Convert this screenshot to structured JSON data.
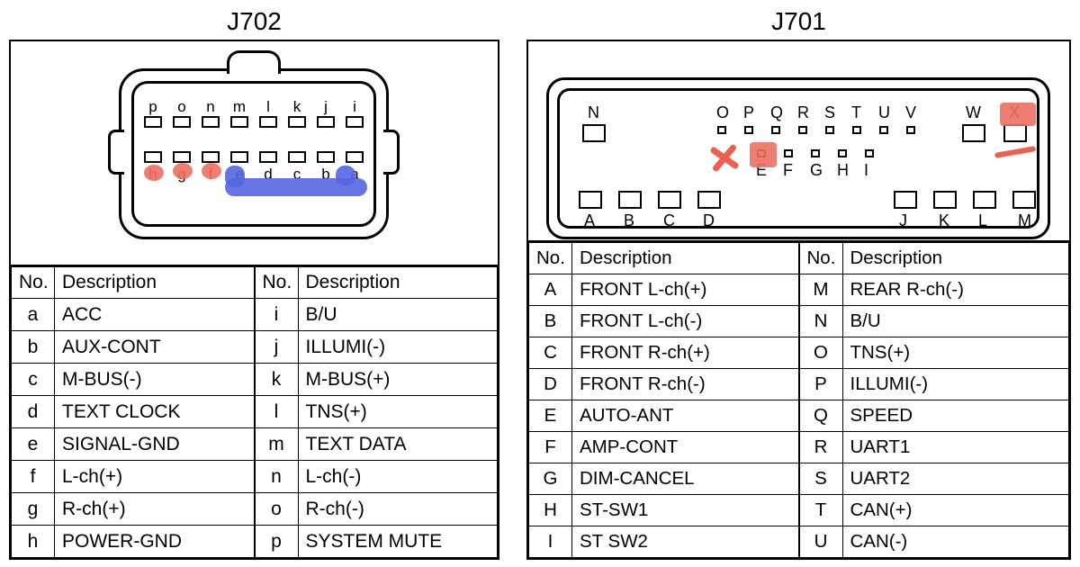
{
  "colors": {
    "line": "#000000",
    "bg": "#ffffff",
    "highlight_red": "#ec7063",
    "highlight_blue": "#5566e0"
  },
  "font": {
    "family": "Arial",
    "title_size": 28,
    "cell_size": 21
  },
  "j702": {
    "title": "J702",
    "headers": {
      "no": "No.",
      "desc": "Description"
    },
    "top_row_labels": [
      "p",
      "o",
      "n",
      "m",
      "l",
      "k",
      "j",
      "i"
    ],
    "bottom_row_labels": [
      "h",
      "g",
      "f",
      "e",
      "d",
      "c",
      "b",
      "a"
    ],
    "left_rows": [
      {
        "no": "a",
        "desc": "ACC"
      },
      {
        "no": "b",
        "desc": "AUX-CONT"
      },
      {
        "no": "c",
        "desc": "M-BUS(-)"
      },
      {
        "no": "d",
        "desc": "TEXT CLOCK"
      },
      {
        "no": "e",
        "desc": "SIGNAL-GND"
      },
      {
        "no": "f",
        "desc": "L-ch(+)"
      },
      {
        "no": "g",
        "desc": "R-ch(+)"
      },
      {
        "no": "h",
        "desc": "POWER-GND"
      }
    ],
    "right_rows": [
      {
        "no": "i",
        "desc": "B/U"
      },
      {
        "no": "j",
        "desc": "ILLUMI(-)"
      },
      {
        "no": "k",
        "desc": "M-BUS(+)"
      },
      {
        "no": "l",
        "desc": "TNS(+)"
      },
      {
        "no": "m",
        "desc": "TEXT DATA"
      },
      {
        "no": "n",
        "desc": "L-ch(-)"
      },
      {
        "no": "o",
        "desc": "R-ch(-)"
      },
      {
        "no": "p",
        "desc": "SYSTEM MUTE"
      }
    ],
    "red_dots_on": [
      "h",
      "g",
      "f"
    ],
    "blue_smear_on": [
      "e",
      "d",
      "c",
      "b",
      "a"
    ]
  },
  "j701": {
    "title": "J701",
    "headers": {
      "no": "No.",
      "desc": "Description"
    },
    "labels_top_mid": [
      "O",
      "P",
      "Q",
      "R",
      "S",
      "T",
      "U",
      "V"
    ],
    "labels_mid": [
      "E",
      "F",
      "G",
      "H",
      "I"
    ],
    "labels_bottom": [
      "A",
      "B",
      "C",
      "D",
      "J",
      "K",
      "L",
      "M"
    ],
    "label_N": "N",
    "label_W": "W",
    "label_X": "X",
    "left_rows": [
      {
        "no": "A",
        "desc": "FRONT L-ch(+)"
      },
      {
        "no": "B",
        "desc": "FRONT L-ch(-)"
      },
      {
        "no": "C",
        "desc": "FRONT R-ch(+)"
      },
      {
        "no": "D",
        "desc": "FRONT R-ch(-)"
      },
      {
        "no": "E",
        "desc": "AUTO-ANT"
      },
      {
        "no": "F",
        "desc": "AMP-CONT"
      },
      {
        "no": "G",
        "desc": "DIM-CANCEL"
      },
      {
        "no": "H",
        "desc": "ST-SW1"
      },
      {
        "no": "I",
        "desc": "ST SW2"
      }
    ],
    "right_rows": [
      {
        "no": "M",
        "desc": "REAR R-ch(-)"
      },
      {
        "no": "N",
        "desc": "B/U"
      },
      {
        "no": "O",
        "desc": "TNS(+)"
      },
      {
        "no": "P",
        "desc": "ILLUMI(-)"
      },
      {
        "no": "Q",
        "desc": "SPEED"
      },
      {
        "no": "R",
        "desc": "UART1"
      },
      {
        "no": "S",
        "desc": "UART2"
      },
      {
        "no": "T",
        "desc": "CAN(+)"
      },
      {
        "no": "U",
        "desc": "CAN(-)"
      }
    ],
    "red_marks": {
      "cross_between": [
        "D",
        "E"
      ],
      "blob_on": "E",
      "blob_on_X": true,
      "scribble_under_X": true
    }
  }
}
